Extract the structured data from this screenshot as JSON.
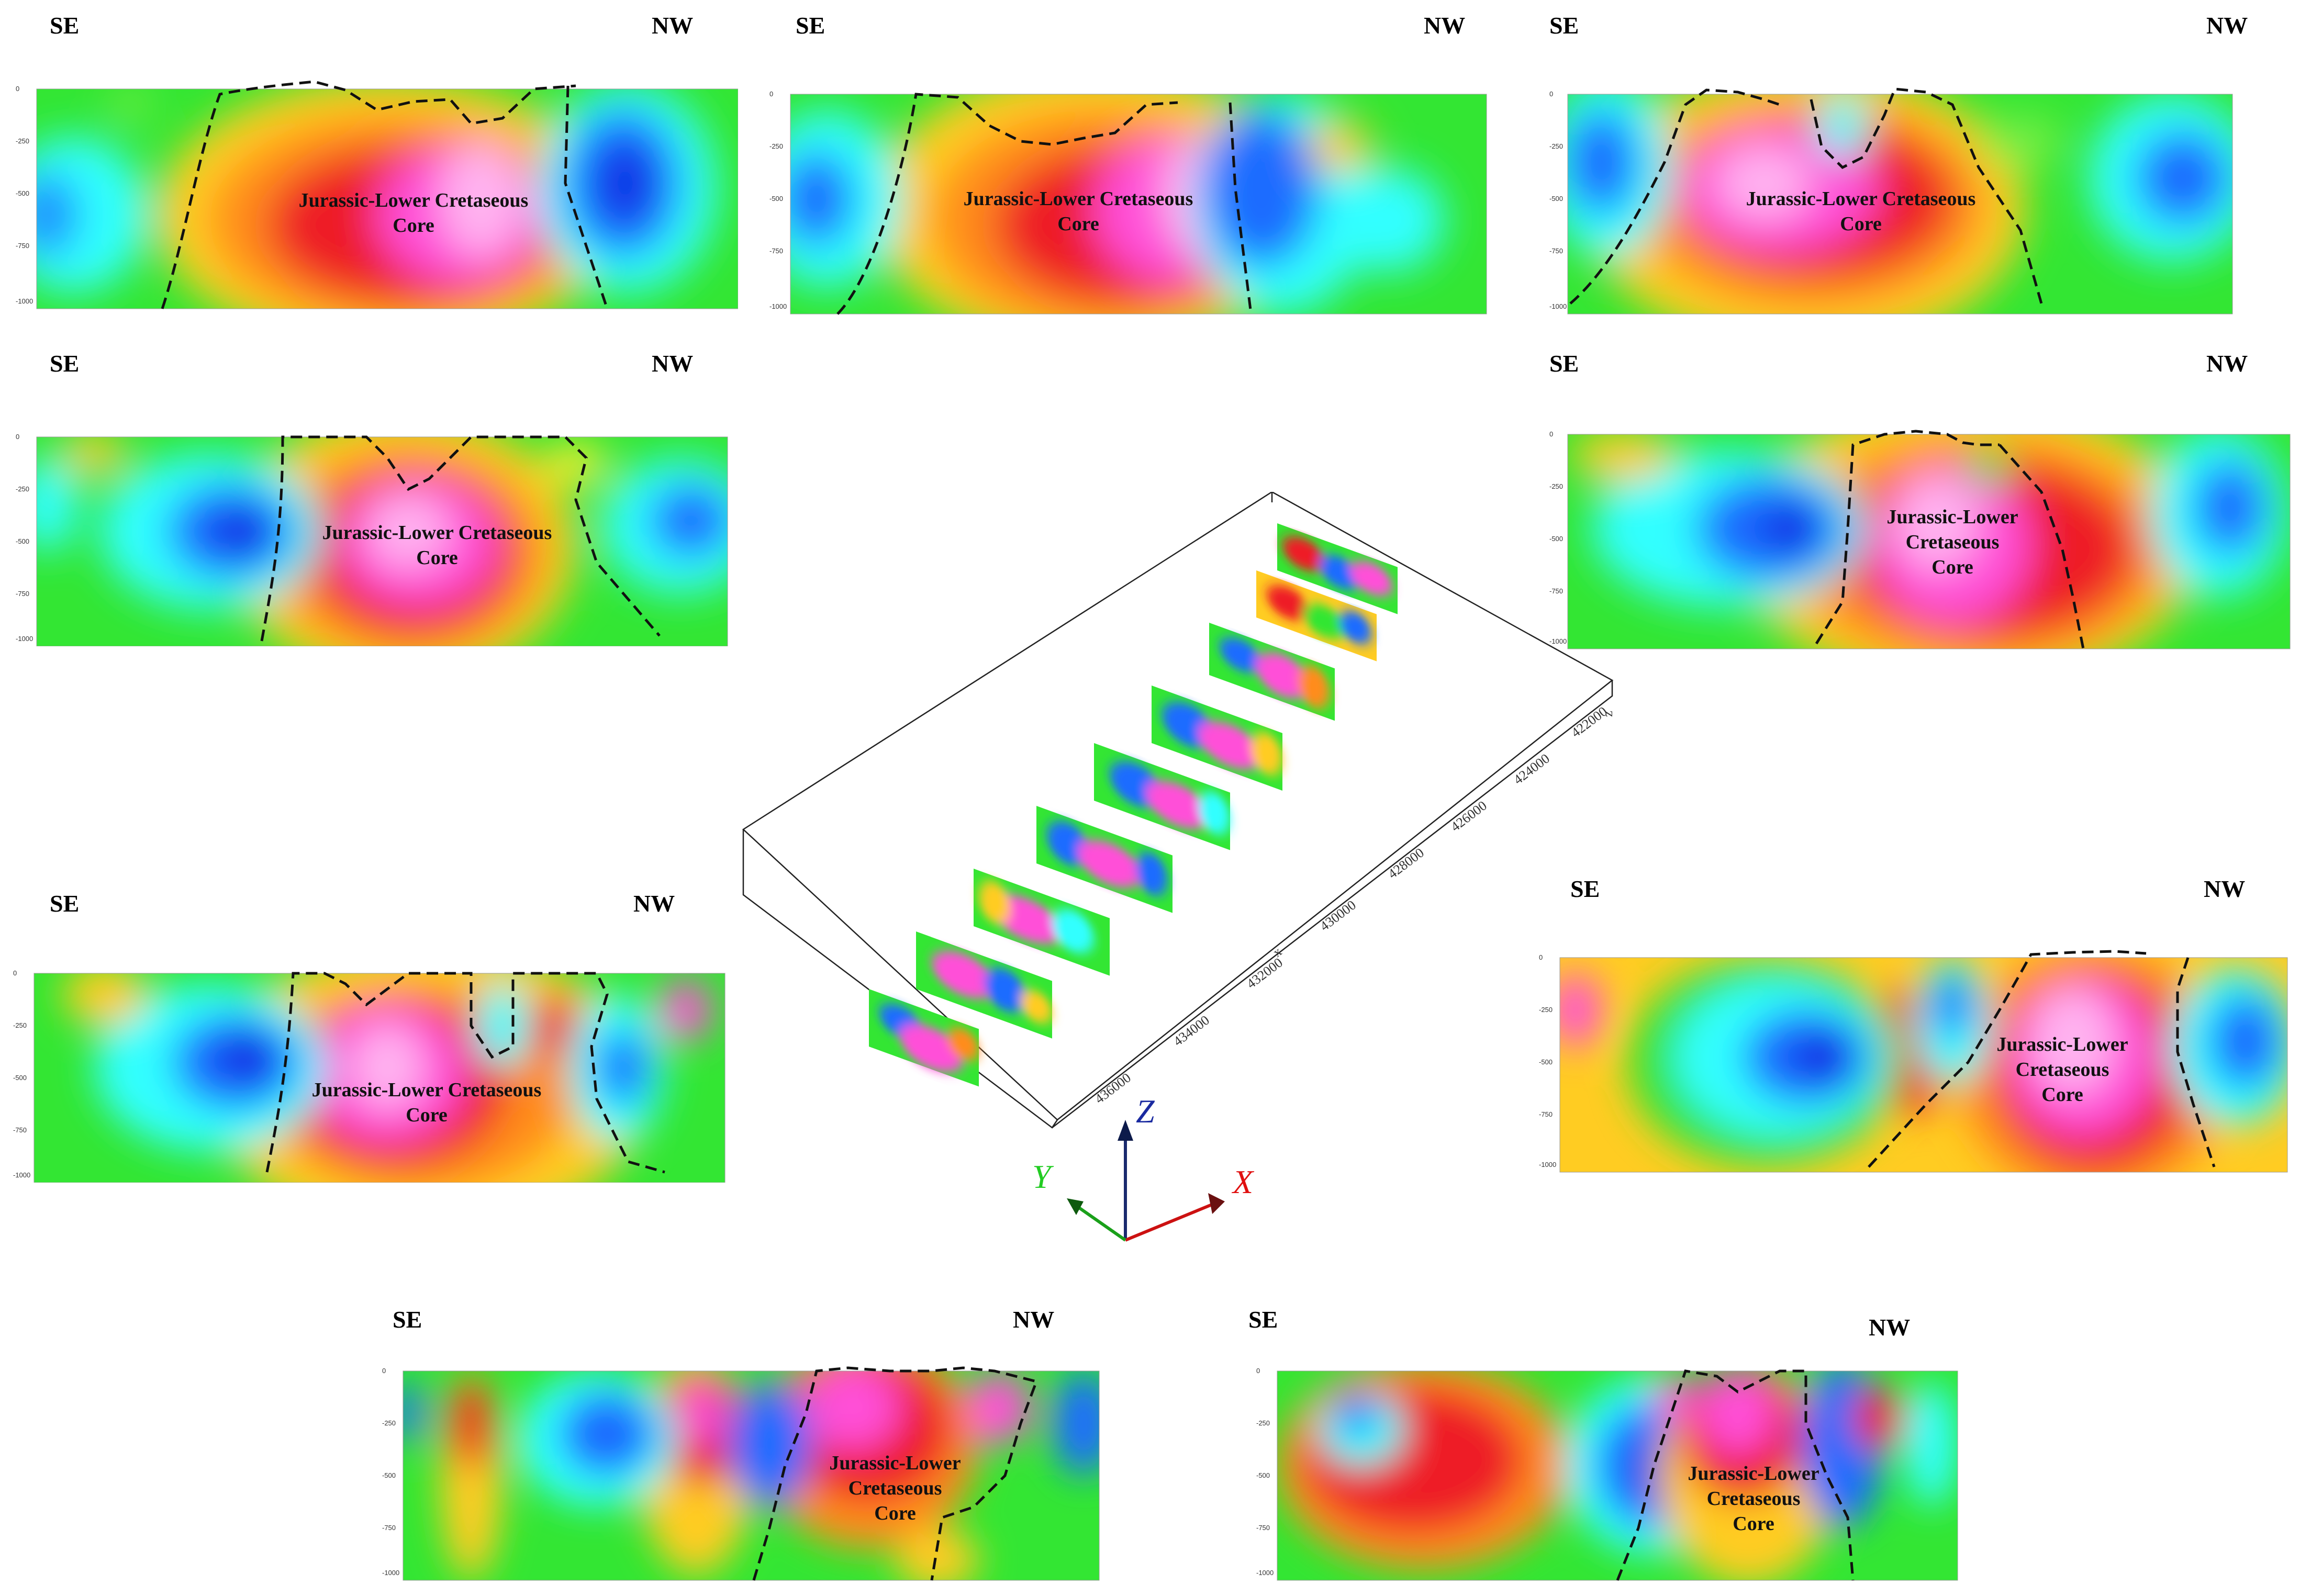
{
  "directions": {
    "left": "SE",
    "right": "NW"
  },
  "core_label": {
    "line1": "Jurassic-Lower Cretaseous",
    "line2": "Core",
    "alt_line1": "Jurassic-Lower",
    "alt_line2": "Cretaseous",
    "alt_line3": "Core"
  },
  "depth_ticks": [
    "0",
    "-250",
    "-500",
    "-750",
    "-1000"
  ],
  "axes": {
    "x": "X",
    "y": "Y",
    "z": "Z"
  },
  "block_labels": {
    "x_axis": "x",
    "z_axis": "z",
    "ticks": [
      "436000",
      "434000",
      "432000",
      "430000",
      "428000",
      "426000",
      "424000",
      "422000"
    ]
  },
  "colors": {
    "magenta": "#ff4fd8",
    "pink": "#ffb3f0",
    "red": "#ee1c25",
    "orange": "#ff8c1a",
    "yellow": "#ffee33",
    "green": "#33e633",
    "cyan": "#33ffff",
    "blue": "#1020e0"
  }
}
